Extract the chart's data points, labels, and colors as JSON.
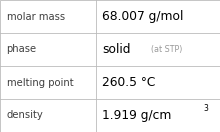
{
  "rows": [
    {
      "label": "molar mass",
      "value": "68.007 g/mol",
      "superscript": null,
      "small_text": null
    },
    {
      "label": "phase",
      "value": "solid",
      "superscript": null,
      "small_text": "(at STP)"
    },
    {
      "label": "melting point",
      "value": "260.5 °C",
      "superscript": null,
      "small_text": null
    },
    {
      "label": "density",
      "value": "1.919 g/cm",
      "superscript": "3",
      "small_text": null
    }
  ],
  "background_color": "#ffffff",
  "border_color": "#bbbbbb",
  "label_color": "#404040",
  "value_color": "#000000",
  "small_text_color": "#999999",
  "superscript_color": "#000000",
  "divider_color": "#bbbbbb",
  "col_split": 0.435,
  "label_fontsize": 7.2,
  "value_fontsize": 8.8,
  "small_fontsize": 5.8,
  "super_fontsize": 5.5,
  "font_family": "DejaVu Sans"
}
